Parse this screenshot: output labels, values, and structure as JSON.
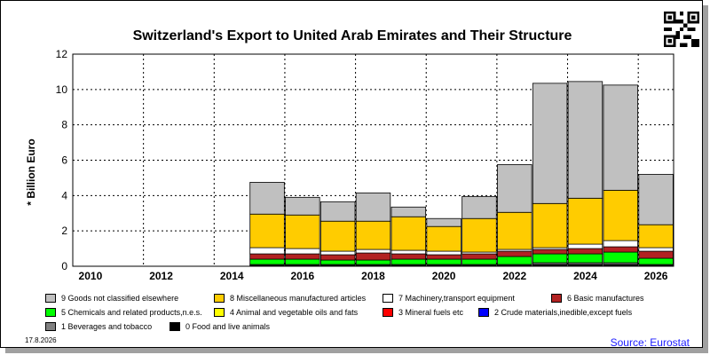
{
  "source_label": "Source: Eurostat",
  "date_label": "17.8.2026",
  "qr": "qr-code-icon",
  "chart_data": {
    "type": "bar",
    "stacked": true,
    "title": "Switzerland's Export to United Arab Emirates and Their Structure",
    "ylabel": "* Billion Euro",
    "xlabel": "",
    "ylim": [
      0,
      12
    ],
    "yticks": [
      "0",
      "2",
      "4",
      "6",
      "8",
      "10",
      "12"
    ],
    "categories": [
      "2010",
      "2011",
      "2012",
      "2013",
      "2014",
      "2015",
      "2016",
      "2017",
      "2018",
      "2019",
      "2020",
      "2021",
      "2022",
      "2023",
      "2024",
      "2025",
      "2026"
    ],
    "xtick_labels": [
      "2010",
      "2012",
      "2014",
      "2016",
      "2018",
      "2020",
      "2022",
      "2024",
      "2026"
    ],
    "grid": true,
    "legend_position": "bottom",
    "series": [
      {
        "name": "0 Food and live animals",
        "color": "#000000",
        "values": [
          0,
          0,
          0,
          0,
          0,
          0.05,
          0.05,
          0.05,
          0.05,
          0.05,
          0.05,
          0.05,
          0.05,
          0.1,
          0.1,
          0.1,
          0.05
        ]
      },
      {
        "name": "1 Beverages and tobacco",
        "color": "#808080",
        "values": [
          0,
          0,
          0,
          0,
          0,
          0.05,
          0.05,
          0.05,
          0.05,
          0.05,
          0.05,
          0.05,
          0.05,
          0.1,
          0.1,
          0.1,
          0.05
        ]
      },
      {
        "name": "2 Crude materials,inedible,except fuels",
        "color": "#0000ff",
        "values": [
          0,
          0,
          0,
          0,
          0,
          0,
          0,
          0,
          0,
          0,
          0,
          0,
          0,
          0,
          0,
          0,
          0
        ]
      },
      {
        "name": "3 Mineral fuels etc",
        "color": "#ff0000",
        "values": [
          0,
          0,
          0,
          0,
          0,
          0,
          0,
          0,
          0,
          0,
          0,
          0,
          0,
          0,
          0,
          0,
          0
        ]
      },
      {
        "name": "4 Animal and vegetable oils and fats",
        "color": "#ffff00",
        "values": [
          0,
          0,
          0,
          0,
          0,
          0,
          0,
          0,
          0,
          0,
          0,
          0,
          0,
          0,
          0,
          0,
          0
        ]
      },
      {
        "name": "5 Chemicals and related products,n.e.s.",
        "color": "#00ff00",
        "values": [
          0,
          0,
          0,
          0,
          0,
          0.3,
          0.3,
          0.25,
          0.25,
          0.3,
          0.3,
          0.3,
          0.45,
          0.5,
          0.5,
          0.6,
          0.35
        ]
      },
      {
        "name": "6 Basic manufactures",
        "color": "#b22222",
        "values": [
          0,
          0,
          0,
          0,
          0,
          0.3,
          0.3,
          0.3,
          0.4,
          0.3,
          0.25,
          0.3,
          0.3,
          0.25,
          0.3,
          0.3,
          0.4
        ]
      },
      {
        "name": "7 Machinery,transport equipment",
        "color": "#ffffff",
        "values": [
          0,
          0,
          0,
          0,
          0,
          0.35,
          0.3,
          0.2,
          0.2,
          0.2,
          0.2,
          0.1,
          0.1,
          0.1,
          0.25,
          0.35,
          0.2
        ]
      },
      {
        "name": "8 Miscellaneous manufactured articles",
        "color": "#ffcc00",
        "values": [
          0,
          0,
          0,
          0,
          0,
          1.9,
          1.9,
          1.7,
          1.6,
          1.9,
          1.4,
          1.9,
          2.1,
          2.5,
          2.6,
          2.85,
          1.3
        ]
      },
      {
        "name": "9 Goods not classified elsewhere",
        "color": "#c0c0c0",
        "values": [
          0,
          0,
          0,
          0,
          0,
          1.8,
          1.0,
          1.1,
          1.6,
          0.55,
          0.45,
          1.25,
          2.7,
          6.8,
          6.6,
          5.95,
          2.85
        ]
      }
    ]
  }
}
